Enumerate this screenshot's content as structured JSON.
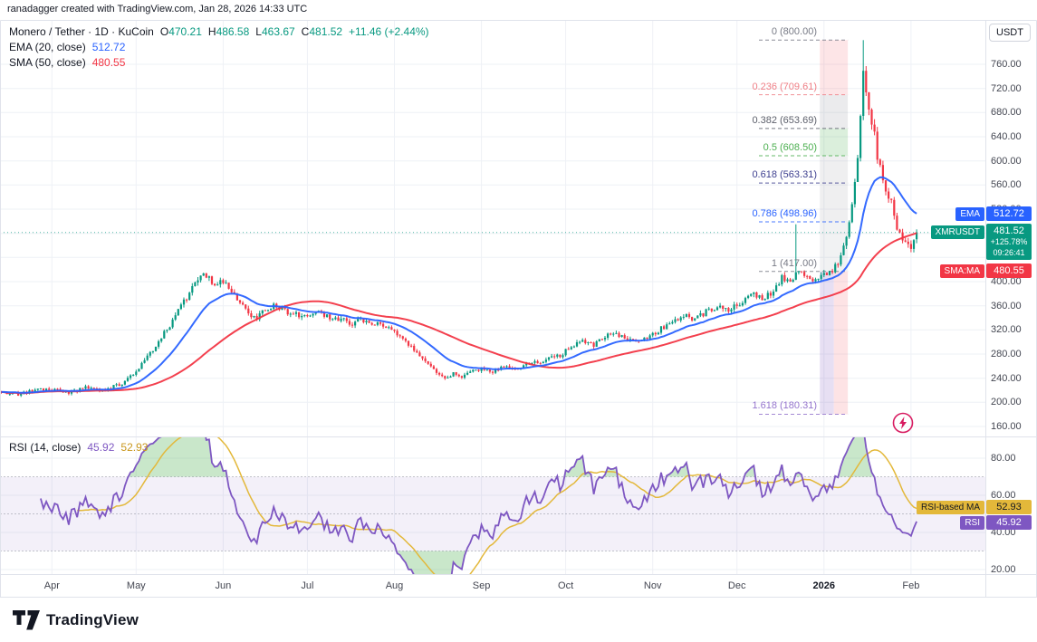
{
  "attribution": "ranadagger created with TradingView.com, Jan 28, 2026 14:33 UTC",
  "footer": {
    "brand": "TradingView"
  },
  "axis": {
    "currency_button": "USDT"
  },
  "header": {
    "title": "Monero / Tether · 1D · KuCoin",
    "ohlc": [
      {
        "k": "O",
        "v": "470.21"
      },
      {
        "k": "H",
        "v": "486.58"
      },
      {
        "k": "L",
        "v": "463.67"
      },
      {
        "k": "C",
        "v": "481.52"
      }
    ],
    "change": "+11.46 (+2.44%)",
    "ema": {
      "label": "EMA (20, close)",
      "value": "512.72"
    },
    "sma": {
      "label": "SMA (50, close)",
      "value": "480.55"
    }
  },
  "rsi_legend": {
    "label": "RSI (14, close)",
    "rsi": "45.92",
    "ma": "52.93"
  },
  "price_labels": {
    "ema": {
      "tag": "EMA",
      "value": "512.72",
      "color": "#2962ff",
      "price": 512.72
    },
    "symbol": {
      "tag": "XMRUSDT",
      "value": "481.52",
      "change_pct": "+125.78%",
      "countdown": "09:26:41",
      "color": "#089981",
      "price": 481.52
    },
    "sma": {
      "tag": "SMA:MA",
      "value": "480.55",
      "color": "#f23645",
      "price": 480.55
    }
  },
  "rsi_labels": {
    "ma": {
      "tag": "RSI-based MA",
      "value": "52.93",
      "color": "#e3b83a",
      "text_color": "#131722",
      "rsi": 52.93
    },
    "rsi": {
      "tag": "RSI",
      "value": "45.92",
      "color": "#7e57c2",
      "text_color": "#ffffff",
      "rsi": 45.92
    }
  },
  "chart_data": {
    "type": "candlestick",
    "title": "Monero / Tether · 1D · KuCoin",
    "symbol": "XMRUSDT",
    "timeframe": "1D",
    "quote_currency": "USDT",
    "days_total": 327,
    "price_axis_ticks": [
      760,
      720,
      680,
      640,
      600,
      560,
      520,
      480,
      440,
      400,
      360,
      320,
      280,
      240,
      200,
      160
    ],
    "rsi_axis_ticks": [
      80,
      60,
      40,
      20
    ],
    "x_axis": [
      {
        "text": "Apr",
        "day": 18
      },
      {
        "text": "May",
        "day": 48
      },
      {
        "text": "Jun",
        "day": 79
      },
      {
        "text": "Jul",
        "day": 109
      },
      {
        "text": "Aug",
        "day": 140
      },
      {
        "text": "Sep",
        "day": 171
      },
      {
        "text": "Oct",
        "day": 201
      },
      {
        "text": "Nov",
        "day": 232
      },
      {
        "text": "Dec",
        "day": 262
      },
      {
        "text": "2026",
        "day": 293,
        "bold": true
      },
      {
        "text": "Feb",
        "day": 324
      }
    ],
    "last_candle": {
      "open": 470.21,
      "high": 486.58,
      "low": 463.67,
      "close": 481.52,
      "change": "+11.46 (+2.44%)"
    },
    "indicators": {
      "ema": {
        "length": 20,
        "source": "close",
        "last": 512.72,
        "color": "#2962ff"
      },
      "sma": {
        "length": 50,
        "source": "close",
        "last": 480.55,
        "color": "#f23645"
      },
      "rsi": {
        "length": 14,
        "source": "close",
        "last": 45.92,
        "color": "#7e57c2"
      },
      "rsi_ma": {
        "length": 14,
        "last": 52.93,
        "color": "#e3b83a"
      }
    },
    "candle_colors": {
      "up": "#089981",
      "down": "#f23645"
    },
    "volatility": 0.028,
    "price_anchors": [
      [
        0,
        217
      ],
      [
        6,
        214
      ],
      [
        12,
        220
      ],
      [
        18,
        222
      ],
      [
        24,
        216
      ],
      [
        30,
        224
      ],
      [
        36,
        220
      ],
      [
        42,
        229
      ],
      [
        46,
        243
      ],
      [
        50,
        262
      ],
      [
        54,
        288
      ],
      [
        58,
        314
      ],
      [
        62,
        342
      ],
      [
        66,
        375
      ],
      [
        69,
        398
      ],
      [
        72,
        415
      ],
      [
        74,
        408
      ],
      [
        76,
        392
      ],
      [
        79,
        403
      ],
      [
        82,
        381
      ],
      [
        85,
        362
      ],
      [
        88,
        348
      ],
      [
        91,
        340
      ],
      [
        94,
        352
      ],
      [
        97,
        360
      ],
      [
        100,
        354
      ],
      [
        103,
        348
      ],
      [
        106,
        344
      ],
      [
        109,
        340
      ],
      [
        113,
        347
      ],
      [
        117,
        342
      ],
      [
        121,
        336
      ],
      [
        125,
        331
      ],
      [
        129,
        337
      ],
      [
        133,
        330
      ],
      [
        137,
        324
      ],
      [
        140,
        318
      ],
      [
        144,
        300
      ],
      [
        148,
        284
      ],
      [
        152,
        266
      ],
      [
        155,
        252
      ],
      [
        158,
        237
      ],
      [
        161,
        248
      ],
      [
        164,
        242
      ],
      [
        167,
        250
      ],
      [
        171,
        255
      ],
      [
        175,
        250
      ],
      [
        179,
        258
      ],
      [
        183,
        254
      ],
      [
        187,
        262
      ],
      [
        191,
        266
      ],
      [
        195,
        272
      ],
      [
        199,
        278
      ],
      [
        203,
        292
      ],
      [
        207,
        302
      ],
      [
        211,
        296
      ],
      [
        215,
        308
      ],
      [
        219,
        315
      ],
      [
        223,
        306
      ],
      [
        227,
        300
      ],
      [
        231,
        310
      ],
      [
        235,
        322
      ],
      [
        239,
        334
      ],
      [
        243,
        345
      ],
      [
        247,
        338
      ],
      [
        251,
        350
      ],
      [
        255,
        360
      ],
      [
        259,
        352
      ],
      [
        263,
        365
      ],
      [
        267,
        380
      ],
      [
        271,
        372
      ],
      [
        275,
        385
      ],
      [
        278,
        408
      ],
      [
        281,
        400
      ],
      [
        284,
        418
      ],
      [
        287,
        405
      ],
      [
        290,
        400
      ],
      [
        293,
        412
      ],
      [
        296,
        420
      ],
      [
        299,
        438
      ],
      [
        301,
        470
      ],
      [
        303,
        530
      ],
      [
        305,
        610
      ],
      [
        306,
        670
      ],
      [
        307,
        745
      ],
      [
        308,
        710
      ],
      [
        309,
        688
      ],
      [
        310,
        660
      ],
      [
        311,
        640
      ],
      [
        312,
        610
      ],
      [
        313,
        592
      ],
      [
        314,
        570
      ],
      [
        315,
        552
      ],
      [
        316,
        540
      ],
      [
        317,
        528
      ],
      [
        318,
        508
      ],
      [
        319,
        492
      ],
      [
        320,
        480
      ],
      [
        321,
        470
      ],
      [
        322,
        463
      ],
      [
        323,
        458
      ],
      [
        324,
        452
      ],
      [
        325,
        468
      ],
      [
        326,
        481.52
      ]
    ],
    "special_highs": {
      "283": 495,
      "307": 800
    },
    "fib_retracement": {
      "levels": [
        {
          "ratio": "0",
          "price": 800.0,
          "label": "0 (800.00)",
          "color": "#787b86"
        },
        {
          "ratio": "0.236",
          "price": 709.61,
          "label": "0.236 (709.61)",
          "color": "#ef7f86"
        },
        {
          "ratio": "0.382",
          "price": 653.69,
          "label": "0.382 (653.69)",
          "color": "#5d606b"
        },
        {
          "ratio": "0.5",
          "price": 608.5,
          "label": "0.5 (608.50)",
          "color": "#4caf50"
        },
        {
          "ratio": "0.618",
          "price": 563.31,
          "label": "0.618 (563.31)",
          "color": "#3d3f8f"
        },
        {
          "ratio": "0.786",
          "price": 498.96,
          "label": "0.786 (498.96)",
          "color": "#2962ff"
        },
        {
          "ratio": "1",
          "price": 417.0,
          "label": "1 (417.00)",
          "color": "#787b86"
        },
        {
          "ratio": "1.618",
          "price": 180.31,
          "label": "1.618 (180.31)",
          "color": "#9575cd"
        }
      ],
      "column_days": [
        292,
        301
      ],
      "bands": [
        {
          "from": 800,
          "to": 709.61,
          "fill": "rgba(242,54,69,0.13)"
        },
        {
          "from": 709.61,
          "to": 653.69,
          "fill": "rgba(120,123,134,0.15)"
        },
        {
          "from": 653.69,
          "to": 608.5,
          "fill": "rgba(76,175,80,0.20)"
        },
        {
          "from": 608.5,
          "to": 563.31,
          "fill": "rgba(120,123,134,0.12)"
        },
        {
          "from": 563.31,
          "to": 498.96,
          "fill": "rgba(120,123,134,0.12)"
        },
        {
          "from": 498.96,
          "to": 417,
          "fill": "rgba(120,123,134,0.10)"
        },
        {
          "from": 417,
          "to": 180.31,
          "fill": "rgba(103,58,183,0.16)",
          "half_right_fill": "rgba(242,54,69,0.14)"
        }
      ]
    },
    "rsi_panel": {
      "band_low": 30,
      "band_high": 70,
      "mid": 50,
      "band_fill": "rgba(126,87,194,0.09)",
      "over_fill": "rgba(76,175,80,0.30)"
    }
  }
}
